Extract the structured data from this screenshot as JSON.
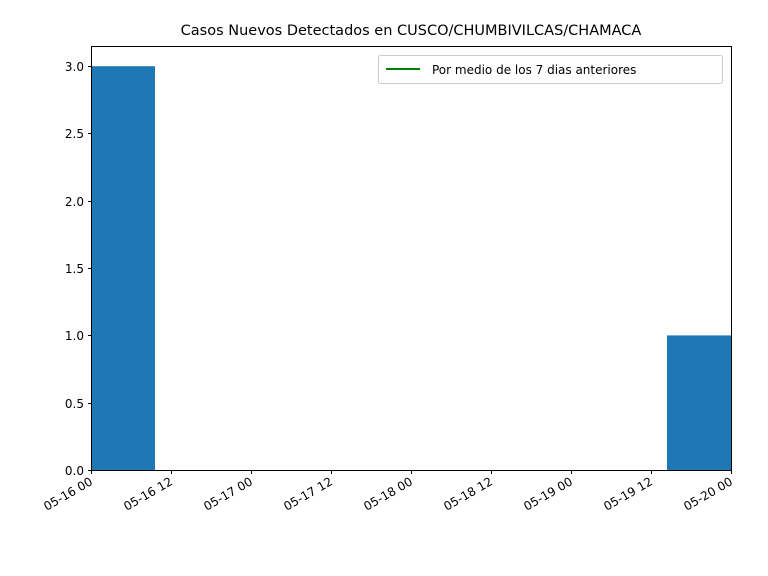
{
  "chart_data": {
    "type": "bar",
    "title": "Casos Nuevos Detectados en CUSCO/CHUMBIVILCAS/CHAMACA",
    "xlabel": "",
    "ylabel": "",
    "x_unit": "hours",
    "xlim": [
      0,
      96
    ],
    "ylim": [
      0,
      3.15
    ],
    "x_ticks": [
      {
        "value": 0,
        "label": "05-16 00"
      },
      {
        "value": 12,
        "label": "05-16 12"
      },
      {
        "value": 24,
        "label": "05-17 00"
      },
      {
        "value": 36,
        "label": "05-17 12"
      },
      {
        "value": 48,
        "label": "05-18 00"
      },
      {
        "value": 60,
        "label": "05-18 12"
      },
      {
        "value": 72,
        "label": "05-19 00"
      },
      {
        "value": 84,
        "label": "05-19 12"
      },
      {
        "value": 96,
        "label": "05-20 00"
      }
    ],
    "y_ticks": [
      {
        "value": 0.0,
        "label": "0.0"
      },
      {
        "value": 0.5,
        "label": "0.5"
      },
      {
        "value": 1.0,
        "label": "1.0"
      },
      {
        "value": 1.5,
        "label": "1.5"
      },
      {
        "value": 2.0,
        "label": "2.0"
      },
      {
        "value": 2.5,
        "label": "2.5"
      },
      {
        "value": 3.0,
        "label": "3.0"
      }
    ],
    "bars": [
      {
        "date": "05-16",
        "start": 0,
        "end": 9.6,
        "value": 3
      },
      {
        "date": "05-17",
        "start": 24,
        "end": 33.6,
        "value": 0
      },
      {
        "date": "05-18",
        "start": 48,
        "end": 57.6,
        "value": 0
      },
      {
        "date": "05-19",
        "start": 72,
        "end": 81.6,
        "value": 0
      },
      {
        "date": "05-20",
        "start": 86.4,
        "end": 96,
        "value": 1
      }
    ],
    "series": [
      {
        "name": "Por medio de los 7 dias anteriores",
        "values": [],
        "color": "#008000"
      }
    ],
    "bar_color": "#1f77b4",
    "legend_position": "upper right",
    "grid": false
  }
}
